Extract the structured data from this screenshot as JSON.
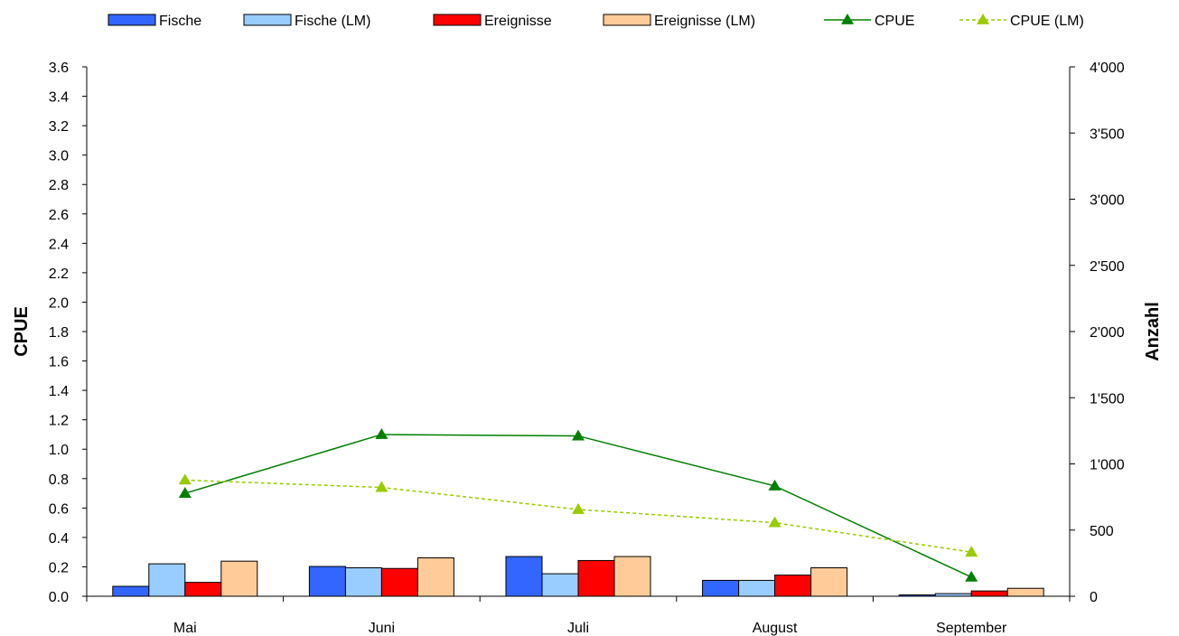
{
  "chart_data": {
    "type": "bar",
    "categories": [
      "Mai",
      "Juni",
      "Juli",
      "August",
      "September"
    ],
    "bar_series": [
      {
        "name": "Fische",
        "values": [
          75,
          225,
          300,
          120,
          10
        ],
        "color": "#3366FF"
      },
      {
        "name": "Fische (LM)",
        "values": [
          245,
          215,
          170,
          120,
          20
        ],
        "color": "#99CCFF"
      },
      {
        "name": "Ereignisse",
        "values": [
          105,
          210,
          270,
          160,
          40
        ],
        "color": "#FF0000"
      },
      {
        "name": "Ereignisse (LM)",
        "values": [
          265,
          290,
          300,
          215,
          60
        ],
        "color": "#FFCC99"
      }
    ],
    "line_series": [
      {
        "name": "CPUE",
        "values": [
          0.7,
          1.1,
          1.09,
          0.75,
          0.13
        ],
        "color": "#008000",
        "dashed": false
      },
      {
        "name": "CPUE (LM)",
        "values": [
          0.79,
          0.74,
          0.59,
          0.5,
          0.3
        ],
        "color": "#99CC00",
        "dashed": true
      }
    ],
    "y_left": {
      "label": "CPUE",
      "lim": [
        0,
        3.6
      ],
      "ticks": [
        "0.0",
        "0.2",
        "0.4",
        "0.6",
        "0.8",
        "1.0",
        "1.2",
        "1.4",
        "1.6",
        "1.8",
        "2.0",
        "2.2",
        "2.4",
        "2.6",
        "2.8",
        "3.0",
        "3.2",
        "3.4",
        "3.6"
      ]
    },
    "y_right": {
      "label": "Anzahl",
      "lim": [
        0,
        4000
      ],
      "ticks": [
        "0",
        "500",
        "1'000",
        "1'500",
        "2'000",
        "2'500",
        "3'000",
        "3'500",
        "4'000"
      ]
    },
    "legend_position": "top",
    "grid": false
  }
}
